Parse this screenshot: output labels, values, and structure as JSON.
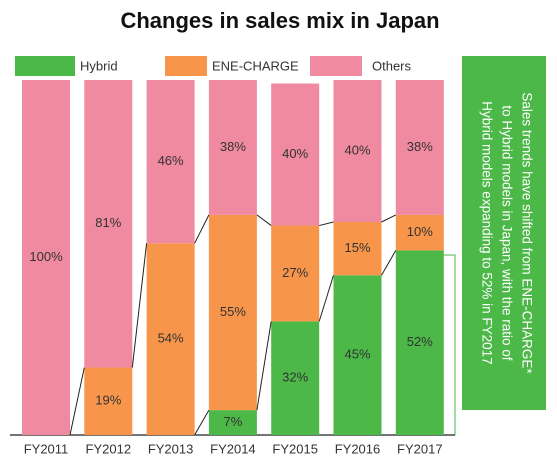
{
  "chart_data": {
    "type": "stacked_bar",
    "title": "Changes in sales mix in Japan",
    "categories": [
      "FY2011",
      "FY2012",
      "FY2013",
      "FY2014",
      "FY2015",
      "FY2016",
      "FY2017"
    ],
    "series": [
      {
        "name": "Hybrid",
        "color": "#4cb848",
        "values": [
          0,
          0,
          0,
          7,
          32,
          45,
          52
        ],
        "value_labels": [
          null,
          null,
          null,
          "7%",
          "32%",
          "45%",
          "52%"
        ]
      },
      {
        "name": "ENE-CHARGE",
        "color": "#f7964a",
        "values": [
          0,
          19,
          54,
          55,
          27,
          15,
          10
        ],
        "value_labels": [
          null,
          "19%",
          "54%",
          "55%",
          "27%",
          "15%",
          "10%"
        ]
      },
      {
        "name": "Others",
        "color": "#f08aa0",
        "values": [
          100,
          81,
          46,
          38,
          40,
          40,
          38
        ],
        "value_labels": [
          "100%",
          "81%",
          "46%",
          "38%",
          "40%",
          "40%",
          "38%"
        ]
      }
    ],
    "ylim": [
      0,
      100
    ],
    "annotation": [
      "Sales trends have shifted from ENE-CHARGE*",
      "to Hybrid models in Japan, with the ratio of",
      "Hybrid models expanding to 52% in FY2017"
    ]
  }
}
